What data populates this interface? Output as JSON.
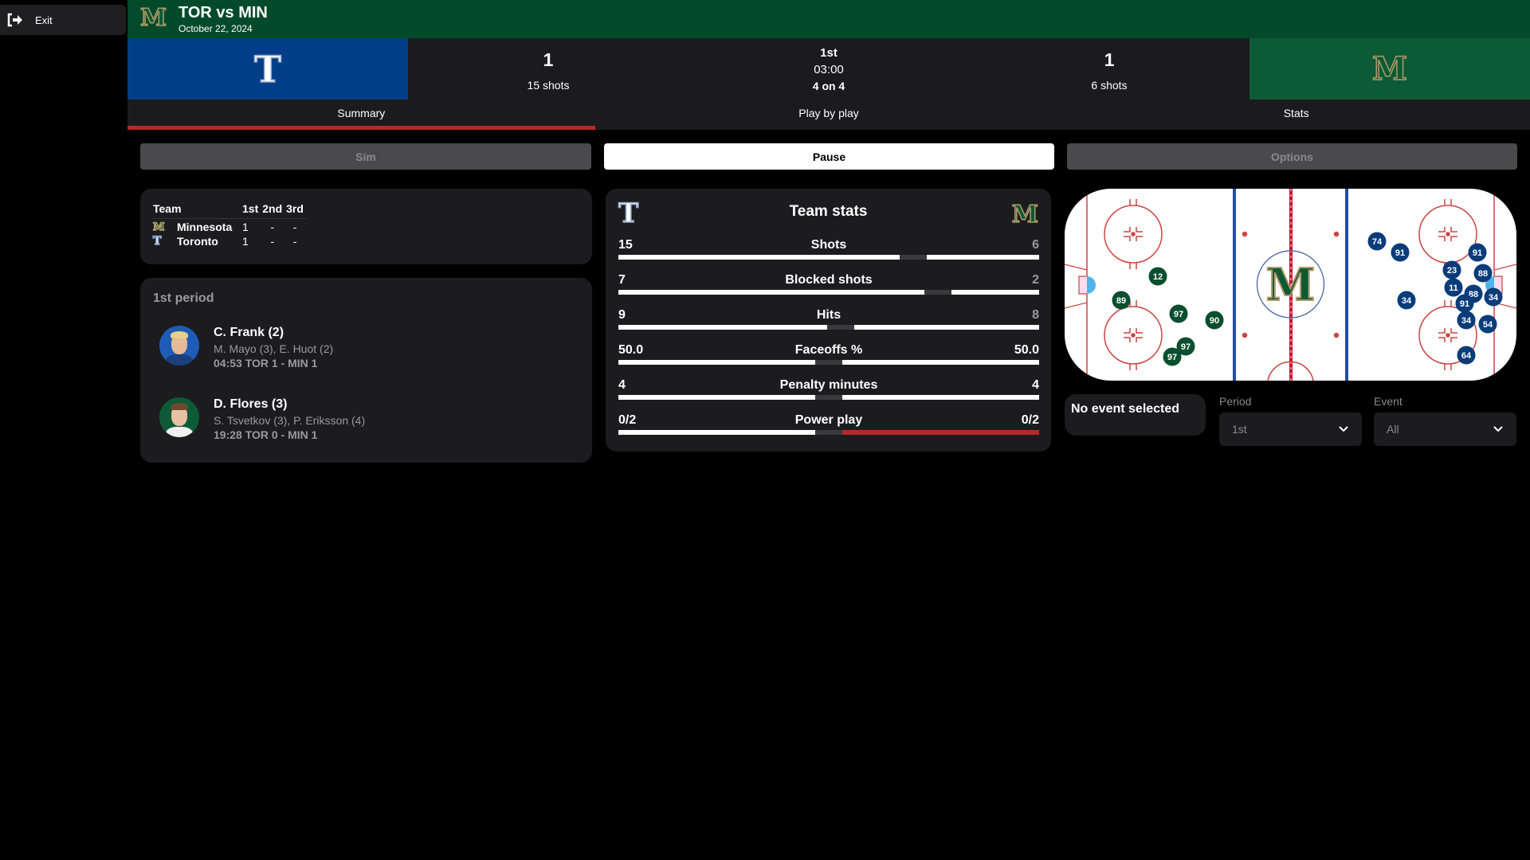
{
  "sidebar": {
    "exit_label": "Exit",
    "exit_icon": "sign-out-icon"
  },
  "header": {
    "title": "TOR vs MIN",
    "date": "October 22, 2024",
    "logo_letter": "M"
  },
  "scoreboard": {
    "home": {
      "abbr": "TOR",
      "logo_letter": "T",
      "score": "1",
      "shots": "15 shots",
      "color": "#003e8a"
    },
    "away": {
      "abbr": "MIN",
      "logo_letter": "M",
      "score": "1",
      "shots": "6 shots",
      "color": "#0c5a36"
    },
    "period": "1st",
    "clock": "03:00",
    "strength": "4 on 4"
  },
  "tabs": [
    {
      "label": "Summary",
      "active": true
    },
    {
      "label": "Play by play"
    },
    {
      "label": "Stats"
    }
  ],
  "controls": {
    "sim": "Sim",
    "pause": "Pause",
    "options": "Options"
  },
  "period_table": {
    "headers": [
      "Team",
      "1st",
      "2nd",
      "3rd"
    ],
    "rows": [
      {
        "team": "Minnesota",
        "logo": "M",
        "p1": "1",
        "p2": "-",
        "p3": "-"
      },
      {
        "team": "Toronto",
        "logo": "T",
        "p1": "1",
        "p2": "-",
        "p3": "-"
      }
    ]
  },
  "goals": {
    "period_label": "1st period",
    "items": [
      {
        "scorer": "C. Frank (2)",
        "assists": "M. Mayo (3), E. Huot (2)",
        "time_score": "04:53 TOR 1 - MIN 1",
        "team": "TOR"
      },
      {
        "scorer": "D. Flores (3)",
        "assists": "S. Tsvetkov (3), P. Eriksson (4)",
        "time_score": "19:28 TOR 0 - MIN 1",
        "team": "MIN"
      }
    ]
  },
  "team_stats": {
    "title": "Team stats",
    "left_logo": "T",
    "right_logo": "M",
    "rows": [
      {
        "label": "Shots",
        "left": "15",
        "right": "6",
        "left_value": 15,
        "right_value": 6
      },
      {
        "label": "Blocked shots",
        "left": "7",
        "right": "2",
        "left_value": 7,
        "right_value": 2
      },
      {
        "label": "Hits",
        "left": "9",
        "right": "8",
        "left_value": 9,
        "right_value": 8
      },
      {
        "label": "Faceoffs %",
        "left": "50.0",
        "right": "50.0",
        "left_value": 50,
        "right_value": 50
      },
      {
        "label": "Penalty minutes",
        "left": "4",
        "right": "4",
        "left_value": 4,
        "right_value": 4
      },
      {
        "label": "Power play",
        "left": "0/2",
        "right": "0/2",
        "left_value": 0,
        "right_value": 0,
        "right_bar_color": "#b82828"
      }
    ]
  },
  "rink": {
    "center_logo": "M",
    "markers": [
      {
        "number": "12",
        "team": "MIN"
      },
      {
        "number": "89",
        "team": "MIN"
      },
      {
        "number": "97",
        "team": "MIN"
      },
      {
        "number": "90",
        "team": "MIN"
      },
      {
        "number": "97",
        "team": "MIN"
      },
      {
        "number": "97",
        "team": "MIN"
      },
      {
        "number": "74",
        "team": "TOR"
      },
      {
        "number": "91",
        "team": "TOR"
      },
      {
        "number": "91",
        "team": "TOR"
      },
      {
        "number": "23",
        "team": "TOR"
      },
      {
        "number": "88",
        "team": "TOR"
      },
      {
        "number": "11",
        "team": "TOR"
      },
      {
        "number": "88",
        "team": "TOR"
      },
      {
        "number": "34",
        "team": "TOR"
      },
      {
        "number": "34",
        "team": "TOR"
      },
      {
        "number": "91",
        "team": "TOR"
      },
      {
        "number": "34",
        "team": "TOR"
      },
      {
        "number": "54",
        "team": "TOR"
      },
      {
        "number": "64",
        "team": "TOR"
      }
    ],
    "team_colors": {
      "MIN": "#0b4f2e",
      "TOR": "#0a3c7a"
    }
  },
  "event_panel": {
    "no_event": "No event selected",
    "period_label": "Period",
    "period_value": "1st",
    "event_label": "Event",
    "event_value": "All"
  }
}
